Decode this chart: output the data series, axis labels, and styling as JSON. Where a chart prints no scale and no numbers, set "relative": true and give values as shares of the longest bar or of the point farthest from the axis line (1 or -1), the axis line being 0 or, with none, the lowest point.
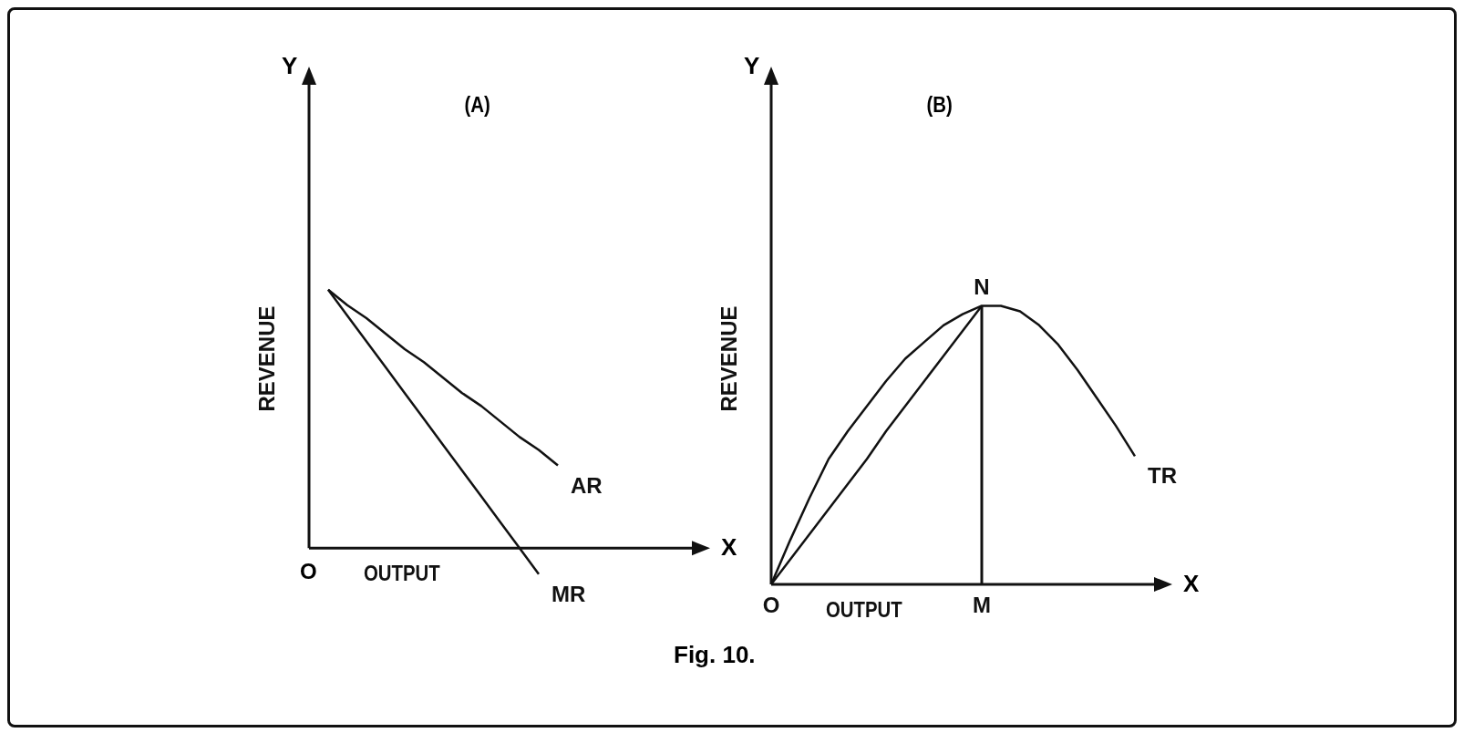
{
  "chart_data": [
    {
      "type": "line",
      "title": "(A)",
      "xlabel": "OUTPUT",
      "ylabel": "REVENUE",
      "relative": true,
      "marker": "none",
      "grid": false,
      "legend": false,
      "categories": [
        null,
        null,
        null,
        null,
        null,
        null,
        null,
        null,
        null,
        null,
        null,
        null,
        null,
        null,
        null,
        null,
        null,
        null,
        null,
        null,
        null
      ],
      "annotations": [
        "Y",
        "X",
        "O",
        "Fig. 10."
      ],
      "series": [
        {
          "name": "AR",
          "color": "#111111",
          "values": [
            null,
            1,
            0.94,
            0.89,
            0.83,
            0.77,
            0.72,
            0.66,
            0.6,
            0.55,
            0.49,
            0.43,
            0.38,
            0.32,
            null,
            null,
            null,
            null,
            null,
            null,
            null
          ]
        },
        {
          "name": "MR",
          "color": "#111111",
          "values": [
            null,
            1,
            0.9,
            0.8,
            0.7,
            0.6,
            0.5,
            0.4,
            0.3,
            0.2,
            0.1,
            0,
            -0.1,
            null,
            null,
            null,
            null,
            null,
            null,
            null,
            null
          ]
        }
      ]
    },
    {
      "type": "line",
      "title": "(B)",
      "xlabel": "OUTPUT",
      "ylabel": "REVENUE",
      "relative": true,
      "marker": "none",
      "grid": false,
      "legend": false,
      "categories": [
        "O",
        null,
        null,
        null,
        null,
        null,
        null,
        null,
        null,
        null,
        null,
        "M",
        null,
        null,
        null,
        null,
        null,
        null,
        null,
        null,
        null
      ],
      "annotations": [
        "Y",
        "X",
        {
          "text": "N",
          "x": "M",
          "y": 1
        }
      ],
      "series": [
        {
          "name": "TR",
          "color": "#111111",
          "values": [
            0,
            0.16,
            0.31,
            0.45,
            0.55,
            0.64,
            0.73,
            0.81,
            0.87,
            0.93,
            0.97,
            1,
            1,
            0.98,
            0.93,
            0.86,
            0.77,
            0.67,
            0.57,
            0.46,
            null
          ]
        },
        {
          "color": "#111111",
          "values": [
            0,
            0.09,
            0.18,
            0.27,
            0.36,
            0.45,
            0.55,
            0.64,
            0.73,
            0.82,
            0.91,
            1,
            null,
            null,
            null,
            null,
            null,
            null,
            null,
            null,
            null
          ]
        },
        {
          "type": "bar",
          "color": "#111111",
          "values": [
            null,
            null,
            null,
            null,
            null,
            null,
            null,
            null,
            null,
            null,
            null,
            1,
            null,
            null,
            null,
            null,
            null,
            null,
            null,
            null,
            null
          ]
        }
      ]
    }
  ]
}
